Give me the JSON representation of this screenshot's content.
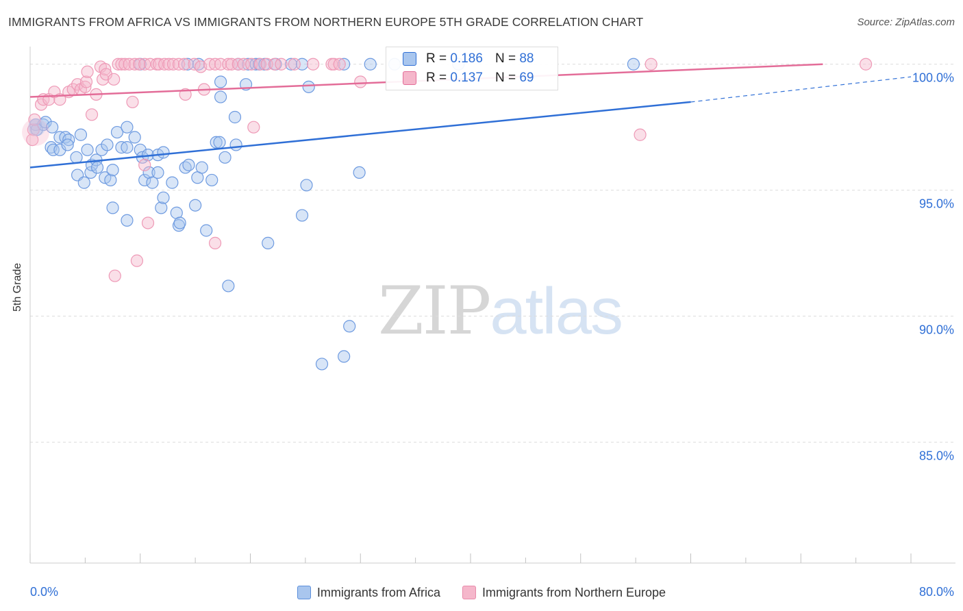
{
  "header": {
    "title": "IMMIGRANTS FROM AFRICA VS IMMIGRANTS FROM NORTHERN EUROPE 5TH GRADE CORRELATION CHART",
    "source": "Source: ZipAtlas.com"
  },
  "watermark": {
    "zip": "ZIP",
    "atlas": "atlas"
  },
  "legend": {
    "series1": {
      "label": "Immigrants from Africa",
      "r_label": "R =",
      "r_value": "0.186",
      "n_label": "N =",
      "n_value": "88"
    },
    "series2": {
      "label": "Immigrants from Northern Europe",
      "r_label": "R =",
      "r_value": "0.137",
      "n_label": "N =",
      "n_value": "69"
    }
  },
  "colors": {
    "blue": "#2f6fd6",
    "blue_fill": "#a9c6ee",
    "pink": "#e36c98",
    "pink_fill": "#f5b7cb",
    "tick_label": "#2f6fd6"
  },
  "chart_data": {
    "type": "scatter",
    "title": "IMMIGRANTS FROM AFRICA VS IMMIGRANTS FROM NORTHERN EUROPE 5TH GRADE CORRELATION CHART",
    "xlabel": "",
    "ylabel": "5th Grade",
    "xlim": [
      0,
      80
    ],
    "ylim": [
      80.2,
      100.7
    ],
    "x_tick_labels": [
      {
        "value": 0,
        "label": "0.0%"
      },
      {
        "value": 80,
        "label": "80.0%"
      }
    ],
    "y_tick_labels": [
      {
        "value": 100,
        "label": "100.0%"
      },
      {
        "value": 95,
        "label": "95.0%"
      },
      {
        "value": 90,
        "label": "90.0%"
      },
      {
        "value": 85,
        "label": "85.0%"
      }
    ],
    "grid": true,
    "series": [
      {
        "name": "Immigrants from Africa",
        "color": "#2f6fd6",
        "trend": {
          "x": [
            0,
            60
          ],
          "y": [
            95.9,
            98.5
          ],
          "dashed_extension_to": [
            80,
            99.5
          ]
        },
        "points": [
          [
            0.5,
            97.6
          ],
          [
            0.6,
            97.4
          ],
          [
            1.2,
            97.6
          ],
          [
            1.4,
            97.7
          ],
          [
            2.0,
            97.5
          ],
          [
            1.9,
            96.7
          ],
          [
            2.1,
            96.6
          ],
          [
            2.7,
            96.6
          ],
          [
            2.7,
            97.1
          ],
          [
            3.2,
            97.1
          ],
          [
            3.5,
            97.0
          ],
          [
            3.4,
            96.8
          ],
          [
            4.6,
            97.2
          ],
          [
            4.2,
            96.3
          ],
          [
            4.3,
            95.6
          ],
          [
            4.9,
            95.3
          ],
          [
            5.2,
            96.6
          ],
          [
            5.5,
            95.7
          ],
          [
            5.6,
            96.0
          ],
          [
            6.0,
            96.2
          ],
          [
            6.1,
            95.9
          ],
          [
            6.5,
            96.6
          ],
          [
            6.8,
            95.5
          ],
          [
            7.0,
            96.8
          ],
          [
            7.3,
            95.4
          ],
          [
            7.5,
            95.8
          ],
          [
            7.9,
            97.3
          ],
          [
            8.3,
            96.7
          ],
          [
            8.8,
            97.5
          ],
          [
            8.8,
            96.7
          ],
          [
            9.5,
            97.1
          ],
          [
            10.0,
            96.6
          ],
          [
            10.2,
            96.3
          ],
          [
            10.7,
            96.4
          ],
          [
            10.4,
            95.4
          ],
          [
            10.8,
            95.7
          ],
          [
            11.1,
            95.3
          ],
          [
            11.6,
            95.7
          ],
          [
            11.6,
            96.4
          ],
          [
            12.1,
            96.5
          ],
          [
            11.9,
            94.3
          ],
          [
            12.1,
            94.7
          ],
          [
            12.9,
            95.3
          ],
          [
            13.3,
            94.1
          ],
          [
            13.5,
            93.6
          ],
          [
            13.6,
            93.7
          ],
          [
            14.1,
            95.9
          ],
          [
            14.4,
            96.0
          ],
          [
            15.0,
            94.4
          ],
          [
            15.2,
            95.5
          ],
          [
            15.6,
            95.9
          ],
          [
            16.5,
            95.4
          ],
          [
            16.0,
            93.4
          ],
          [
            16.9,
            96.9
          ],
          [
            17.2,
            96.9
          ],
          [
            17.7,
            96.3
          ],
          [
            17.3,
            98.7
          ],
          [
            17.3,
            99.3
          ],
          [
            18.7,
            96.8
          ],
          [
            18.6,
            97.9
          ],
          [
            19.6,
            99.2
          ],
          [
            18.0,
            91.2
          ],
          [
            24.7,
            94.0
          ],
          [
            21.6,
            92.9
          ],
          [
            25.1,
            95.2
          ],
          [
            25.3,
            99.1
          ],
          [
            26.5,
            88.1
          ],
          [
            28.5,
            88.4
          ],
          [
            29.0,
            89.6
          ],
          [
            29.9,
            95.7
          ],
          [
            7.5,
            94.3
          ],
          [
            8.8,
            93.8
          ],
          [
            10.0,
            100.0
          ],
          [
            14.3,
            100.0
          ],
          [
            15.3,
            100.0
          ],
          [
            18.9,
            100.0
          ],
          [
            19.8,
            100.0
          ],
          [
            20.5,
            100.0
          ],
          [
            20.8,
            100.0
          ],
          [
            21.3,
            100.0
          ],
          [
            22.3,
            100.0
          ],
          [
            23.7,
            100.0
          ],
          [
            24.7,
            100.0
          ],
          [
            28.5,
            100.0
          ],
          [
            30.9,
            100.0
          ],
          [
            33.1,
            100.0
          ],
          [
            38.9,
            100.0
          ],
          [
            54.8,
            100.0
          ]
        ]
      },
      {
        "name": "Immigrants from Northern Europe",
        "color": "#e36c98",
        "trend": {
          "x": [
            0,
            72
          ],
          "y": [
            98.7,
            100.0
          ]
        },
        "points": [
          [
            0.3,
            97.4
          ],
          [
            0.4,
            97.8
          ],
          [
            1.0,
            98.4
          ],
          [
            1.2,
            98.6
          ],
          [
            1.7,
            98.6
          ],
          [
            2.2,
            98.9
          ],
          [
            2.7,
            98.6
          ],
          [
            3.5,
            98.9
          ],
          [
            3.9,
            99.0
          ],
          [
            4.3,
            99.2
          ],
          [
            4.6,
            99.0
          ],
          [
            5.0,
            99.1
          ],
          [
            5.1,
            99.3
          ],
          [
            5.2,
            99.7
          ],
          [
            5.6,
            98.0
          ],
          [
            6.0,
            98.8
          ],
          [
            6.4,
            99.9
          ],
          [
            6.6,
            99.4
          ],
          [
            6.8,
            99.8
          ],
          [
            6.9,
            99.6
          ],
          [
            7.6,
            99.4
          ],
          [
            8.0,
            100.0
          ],
          [
            8.3,
            100.0
          ],
          [
            8.6,
            100.0
          ],
          [
            9.0,
            100.0
          ],
          [
            9.3,
            98.5
          ],
          [
            9.5,
            100.0
          ],
          [
            9.9,
            100.0
          ],
          [
            10.4,
            100.0
          ],
          [
            10.9,
            100.0
          ],
          [
            11.5,
            100.0
          ],
          [
            11.7,
            100.0
          ],
          [
            12.2,
            100.0
          ],
          [
            12.6,
            100.0
          ],
          [
            13.0,
            100.0
          ],
          [
            13.5,
            100.0
          ],
          [
            14.0,
            100.0
          ],
          [
            14.1,
            98.8
          ],
          [
            14.9,
            100.0
          ],
          [
            15.5,
            99.9
          ],
          [
            15.8,
            99.0
          ],
          [
            16.3,
            100.0
          ],
          [
            16.8,
            100.0
          ],
          [
            17.3,
            100.0
          ],
          [
            18.0,
            100.0
          ],
          [
            18.3,
            100.0
          ],
          [
            18.9,
            100.0
          ],
          [
            19.4,
            100.0
          ],
          [
            20.1,
            100.0
          ],
          [
            20.3,
            97.5
          ],
          [
            20.9,
            100.0
          ],
          [
            21.5,
            100.0
          ],
          [
            22.2,
            100.0
          ],
          [
            22.8,
            100.0
          ],
          [
            24.0,
            100.0
          ],
          [
            25.7,
            100.0
          ],
          [
            27.4,
            100.0
          ],
          [
            27.6,
            100.0
          ],
          [
            30.0,
            99.3
          ],
          [
            28.1,
            100.0
          ],
          [
            10.4,
            96.0
          ],
          [
            10.7,
            93.7
          ],
          [
            9.7,
            92.2
          ],
          [
            7.7,
            91.6
          ],
          [
            16.8,
            92.9
          ],
          [
            55.4,
            97.2
          ],
          [
            56.4,
            100.0
          ],
          [
            75.9,
            100.0
          ],
          [
            0.2,
            97.0
          ]
        ]
      }
    ]
  }
}
